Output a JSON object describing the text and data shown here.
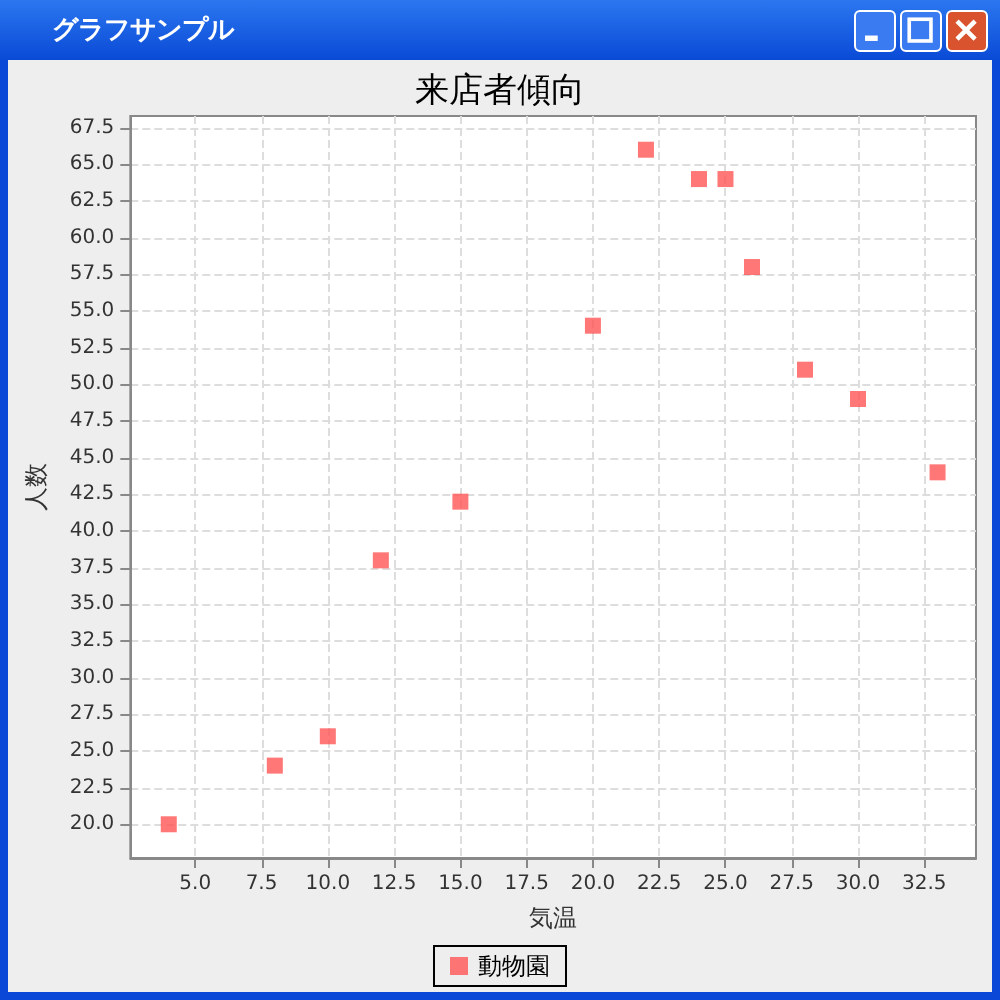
{
  "chart_data": {
    "type": "scatter",
    "title": "来店者傾向",
    "xlabel": "気温",
    "ylabel": "人数",
    "annotations": [
      "グラフサンプル"
    ],
    "x": [
      4,
      8,
      10,
      12,
      15,
      20,
      22,
      24,
      25,
      26,
      28,
      30,
      33
    ],
    "series": [
      {
        "name": "動物園",
        "color": "#ff5555",
        "values": [
          20,
          24,
          26,
          38,
          42,
          54,
          66,
          64,
          64,
          58,
          51,
          49,
          44
        ]
      }
    ],
    "xlim": [
      2.55,
      34.45
    ],
    "xticks": [
      {
        "value": 5,
        "label": "5.0"
      },
      {
        "value": 7.5,
        "label": "7.5"
      },
      {
        "value": 10,
        "label": "10.0"
      },
      {
        "value": 12.5,
        "label": "12.5"
      },
      {
        "value": 15,
        "label": "15.0"
      },
      {
        "value": 17.5,
        "label": "17.5"
      },
      {
        "value": 20,
        "label": "20.0"
      },
      {
        "value": 22.5,
        "label": "22.5"
      },
      {
        "value": 25,
        "label": "25.0"
      },
      {
        "value": 27.5,
        "label": "27.5"
      },
      {
        "value": 30,
        "label": "30.0"
      },
      {
        "value": 32.5,
        "label": "32.5"
      }
    ],
    "ylim": [
      17.7,
      68.3
    ],
    "yticks": [
      {
        "value": 20,
        "label": "20.0"
      },
      {
        "value": 22.5,
        "label": "22.5"
      },
      {
        "value": 25,
        "label": "25.0"
      },
      {
        "value": 27.5,
        "label": "27.5"
      },
      {
        "value": 30,
        "label": "30.0"
      },
      {
        "value": 32.5,
        "label": "32.5"
      },
      {
        "value": 35,
        "label": "35.0"
      },
      {
        "value": 37.5,
        "label": "37.5"
      },
      {
        "value": 40,
        "label": "40.0"
      },
      {
        "value": 42.5,
        "label": "42.5"
      },
      {
        "value": 45,
        "label": "45.0"
      },
      {
        "value": 47.5,
        "label": "47.5"
      },
      {
        "value": 50,
        "label": "50.0"
      },
      {
        "value": 52.5,
        "label": "52.5"
      },
      {
        "value": 55,
        "label": "55.0"
      },
      {
        "value": 57.5,
        "label": "57.5"
      },
      {
        "value": 60,
        "label": "60.0"
      },
      {
        "value": 62.5,
        "label": "62.5"
      },
      {
        "value": 65,
        "label": "65.0"
      },
      {
        "value": 67.5,
        "label": "67.5"
      }
    ],
    "grid": true,
    "legend": "bottom",
    "marker": "square"
  }
}
